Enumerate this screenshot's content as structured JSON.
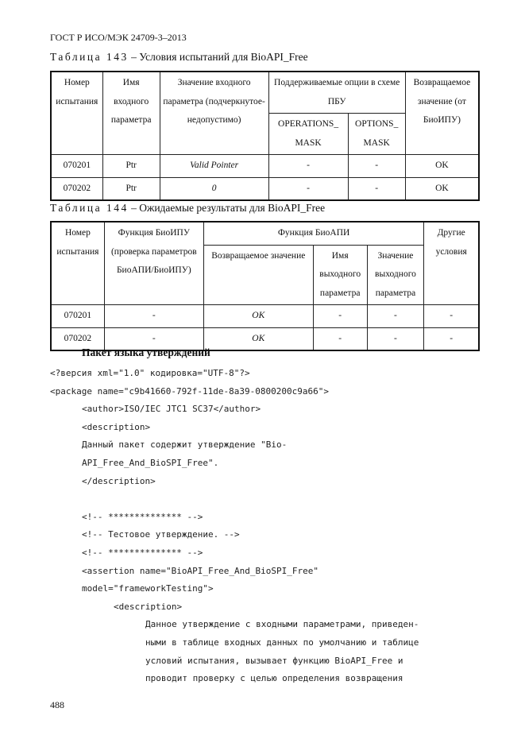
{
  "header": "ГОСТ Р ИСО/МЭК 24709-3–2013",
  "table143": {
    "caption_label": "Таблица 143",
    "caption_text": " – Условия испытаний для BioAPI_Free",
    "headers": [
      "Номер испытания",
      "Имя входного параметра",
      "Значение входного параметра (подчеркнутое- недопустимо)",
      "Поддерживаемые опции в схеме ПБУ",
      "OPERATIONS_ MASK",
      "OPTIONS_ MASK",
      "Возвращаемое значение (от БиоИПУ)"
    ],
    "rows": [
      [
        "070201",
        "Ptr",
        "Valid Pointer",
        "-",
        "-",
        "OK"
      ],
      [
        "070202",
        "Ptr",
        "0",
        "-",
        "-",
        "OK"
      ]
    ]
  },
  "table144": {
    "caption_label": "Таблица 144",
    "caption_text": " – Ожидаемые результаты для BioAPI_Free",
    "headers": [
      "Номер испытания",
      "Функция БиоИПУ (проверка параметров БиоАПИ/БиоИПУ)",
      "Функция БиоАПИ",
      "Возвращаемое значение",
      "Имя выходного параметра",
      "Значение выходного параметра",
      "Другие условия"
    ],
    "rows": [
      [
        "070201",
        "-",
        "OK",
        "-",
        "-",
        "-"
      ],
      [
        "070202",
        "-",
        "OK",
        "-",
        "-",
        "-"
      ]
    ]
  },
  "section_title": "Пакет языка утверждений",
  "code": [
    {
      "indent": 0,
      "text": "<?версия xml=\"1.0\" кодировка=\"UTF-8\"?>"
    },
    {
      "indent": 0,
      "text": "<package name=\"c9b41660-792f-11de-8a39-0800200c9a66\">"
    },
    {
      "indent": 1,
      "text": "<author>ISO/IEC JTC1 SC37</author>"
    },
    {
      "indent": 1,
      "text": "<description>"
    },
    {
      "indent": 1,
      "text": "Данный пакет содержит утверждение \"Bio-"
    },
    {
      "indent": 1,
      "text": "API_Free_And_BioSPI_Free\"."
    },
    {
      "indent": 1,
      "text": "</description>"
    },
    {
      "indent": 1,
      "text": ""
    },
    {
      "indent": 1,
      "text": "<!-- ************** -->"
    },
    {
      "indent": 1,
      "text": "<!-- Тестовое утверждение. -->"
    },
    {
      "indent": 1,
      "text": "<!-- ************** -->"
    },
    {
      "indent": 1,
      "text": "<assertion name=\"BioAPI_Free_And_BioSPI_Free\""
    },
    {
      "indent": 1,
      "text": "model=\"frameworkTesting\">"
    },
    {
      "indent": 2,
      "text": "<description>"
    },
    {
      "indent": 3,
      "text": "Данное утверждение с входными параметрами, приведен-"
    },
    {
      "indent": 3,
      "text": "ными в таблице входных данных по умолчанию и таблице"
    },
    {
      "indent": 3,
      "text": "условий испытания, вызывает функцию BioAPI_Free и"
    },
    {
      "indent": 3,
      "text": "проводит проверку с целью определения возвращения"
    }
  ],
  "page_number": "488"
}
